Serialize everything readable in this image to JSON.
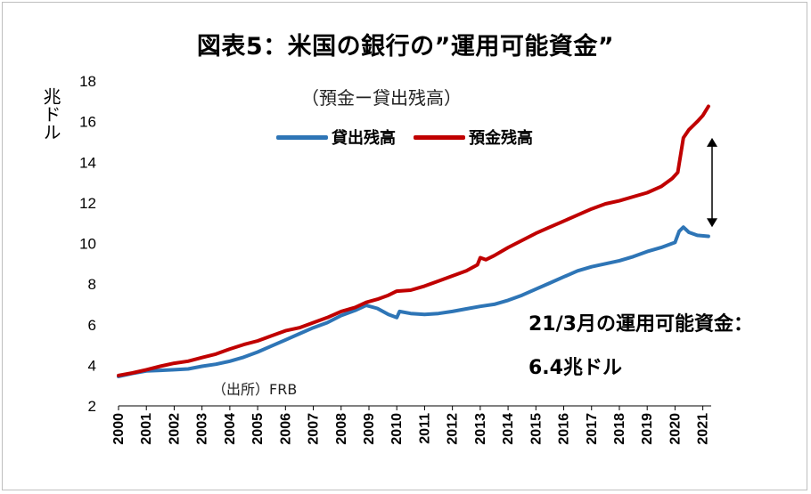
{
  "title": "図表5：米国の銀行の”運用可能資金”",
  "subtitle": "（預金ー貸出残高）",
  "ylabel": "兆ドル",
  "annotation_line1": "21/3月の運用可能資金：",
  "annotation_line2": "6.4兆ドル",
  "source": "（出所）FRB",
  "colors": {
    "loans": "#2e75b6",
    "deposits": "#c00000",
    "axis": "#000000"
  },
  "chart_data": {
    "type": "line",
    "ylim": [
      2,
      18
    ],
    "yticks": [
      2,
      4,
      6,
      8,
      10,
      12,
      14,
      16,
      18
    ],
    "xlim": [
      2000,
      2021.3
    ],
    "xticks": [
      "2000",
      "2001",
      "2002",
      "2003",
      "2004",
      "2005",
      "2006",
      "2007",
      "2008",
      "2009",
      "2010",
      "2011",
      "2012",
      "2013",
      "2014",
      "2015",
      "2016",
      "2017",
      "2018",
      "2019",
      "2020",
      "2021"
    ],
    "legend_position": "top",
    "grid": false,
    "series": [
      {
        "name": "貸出残高",
        "color": "#2e75b6",
        "points": [
          [
            2000.0,
            3.45
          ],
          [
            2000.5,
            3.6
          ],
          [
            2001.0,
            3.72
          ],
          [
            2001.5,
            3.75
          ],
          [
            2002.0,
            3.78
          ],
          [
            2002.5,
            3.82
          ],
          [
            2003.0,
            3.95
          ],
          [
            2003.5,
            4.05
          ],
          [
            2004.0,
            4.2
          ],
          [
            2004.5,
            4.4
          ],
          [
            2005.0,
            4.65
          ],
          [
            2005.5,
            4.95
          ],
          [
            2006.0,
            5.25
          ],
          [
            2006.5,
            5.55
          ],
          [
            2007.0,
            5.85
          ],
          [
            2007.5,
            6.1
          ],
          [
            2008.0,
            6.45
          ],
          [
            2008.5,
            6.7
          ],
          [
            2008.9,
            6.95
          ],
          [
            2009.3,
            6.8
          ],
          [
            2009.7,
            6.5
          ],
          [
            2010.0,
            6.35
          ],
          [
            2010.1,
            6.65
          ],
          [
            2010.5,
            6.55
          ],
          [
            2011.0,
            6.5
          ],
          [
            2011.5,
            6.55
          ],
          [
            2012.0,
            6.65
          ],
          [
            2012.5,
            6.78
          ],
          [
            2013.0,
            6.9
          ],
          [
            2013.5,
            7.0
          ],
          [
            2014.0,
            7.2
          ],
          [
            2014.5,
            7.45
          ],
          [
            2015.0,
            7.75
          ],
          [
            2015.5,
            8.05
          ],
          [
            2016.0,
            8.35
          ],
          [
            2016.5,
            8.65
          ],
          [
            2017.0,
            8.85
          ],
          [
            2017.5,
            9.0
          ],
          [
            2018.0,
            9.15
          ],
          [
            2018.5,
            9.35
          ],
          [
            2019.0,
            9.6
          ],
          [
            2019.5,
            9.8
          ],
          [
            2019.9,
            10.0
          ],
          [
            2020.0,
            10.05
          ],
          [
            2020.15,
            10.6
          ],
          [
            2020.3,
            10.8
          ],
          [
            2020.5,
            10.55
          ],
          [
            2020.8,
            10.4
          ],
          [
            2021.2,
            10.35
          ]
        ]
      },
      {
        "name": "預金残高",
        "color": "#c00000",
        "points": [
          [
            2000.0,
            3.5
          ],
          [
            2000.5,
            3.62
          ],
          [
            2001.0,
            3.78
          ],
          [
            2001.5,
            3.95
          ],
          [
            2002.0,
            4.1
          ],
          [
            2002.5,
            4.2
          ],
          [
            2003.0,
            4.38
          ],
          [
            2003.5,
            4.55
          ],
          [
            2004.0,
            4.8
          ],
          [
            2004.5,
            5.02
          ],
          [
            2005.0,
            5.2
          ],
          [
            2005.5,
            5.45
          ],
          [
            2006.0,
            5.7
          ],
          [
            2006.5,
            5.85
          ],
          [
            2007.0,
            6.1
          ],
          [
            2007.5,
            6.35
          ],
          [
            2008.0,
            6.65
          ],
          [
            2008.5,
            6.85
          ],
          [
            2008.9,
            7.1
          ],
          [
            2009.3,
            7.25
          ],
          [
            2009.7,
            7.45
          ],
          [
            2010.0,
            7.65
          ],
          [
            2010.5,
            7.7
          ],
          [
            2011.0,
            7.9
          ],
          [
            2011.5,
            8.15
          ],
          [
            2012.0,
            8.4
          ],
          [
            2012.5,
            8.65
          ],
          [
            2012.9,
            8.95
          ],
          [
            2013.0,
            9.3
          ],
          [
            2013.2,
            9.2
          ],
          [
            2013.5,
            9.4
          ],
          [
            2014.0,
            9.8
          ],
          [
            2014.5,
            10.15
          ],
          [
            2015.0,
            10.5
          ],
          [
            2015.5,
            10.8
          ],
          [
            2016.0,
            11.1
          ],
          [
            2016.5,
            11.4
          ],
          [
            2017.0,
            11.7
          ],
          [
            2017.5,
            11.95
          ],
          [
            2018.0,
            12.1
          ],
          [
            2018.5,
            12.3
          ],
          [
            2019.0,
            12.5
          ],
          [
            2019.5,
            12.8
          ],
          [
            2019.9,
            13.2
          ],
          [
            2020.1,
            13.5
          ],
          [
            2020.3,
            15.2
          ],
          [
            2020.5,
            15.6
          ],
          [
            2020.8,
            16.0
          ],
          [
            2021.0,
            16.3
          ],
          [
            2021.2,
            16.75
          ]
        ]
      }
    ]
  }
}
